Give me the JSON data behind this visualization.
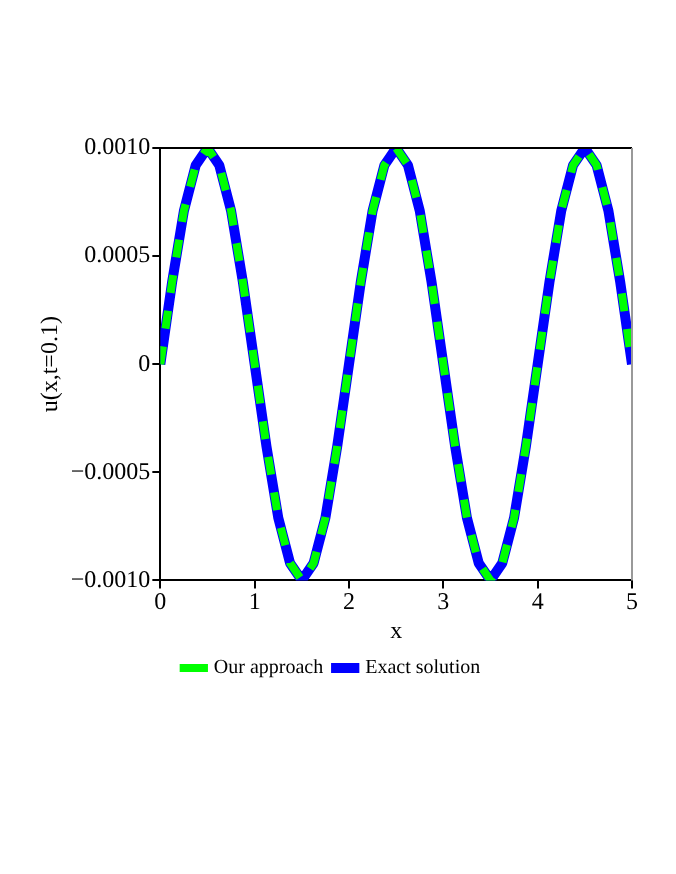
{
  "chart_data": {
    "type": "line",
    "xlabel": "x",
    "ylabel": "u(x,t=0.1)",
    "x": [
      0,
      0.125,
      0.25,
      0.375,
      0.5,
      0.625,
      0.75,
      0.875,
      1,
      1.125,
      1.25,
      1.375,
      1.5,
      1.625,
      1.75,
      1.875,
      2,
      2.125,
      2.25,
      2.375,
      2.5,
      2.625,
      2.75,
      2.875,
      3,
      3.125,
      3.25,
      3.375,
      3.5,
      3.625,
      3.75,
      3.875,
      4,
      4.125,
      4.25,
      4.375,
      4.5,
      4.625,
      4.75,
      4.875,
      5
    ],
    "series": [
      {
        "name": "Our approach",
        "color": "#00ff00",
        "line_style": "dashed",
        "values": [
          0,
          0.00038,
          0.00071,
          0.00092,
          0.001,
          0.00092,
          0.00071,
          0.00038,
          0,
          -0.00038,
          -0.00071,
          -0.00092,
          -0.001,
          -0.00092,
          -0.00071,
          -0.00038,
          0,
          0.00038,
          0.00071,
          0.00092,
          0.001,
          0.00092,
          0.00071,
          0.00038,
          0,
          -0.00038,
          -0.00071,
          -0.00092,
          -0.001,
          -0.00092,
          -0.00071,
          -0.00038,
          0,
          0.00038,
          0.00071,
          0.00092,
          0.001,
          0.00092,
          0.00071,
          0.00038,
          0
        ]
      },
      {
        "name": "Exact solution",
        "color": "#0000ff",
        "line_style": "solid",
        "values": [
          0,
          0.00038,
          0.00071,
          0.00092,
          0.001,
          0.00092,
          0.00071,
          0.00038,
          0,
          -0.00038,
          -0.00071,
          -0.00092,
          -0.001,
          -0.00092,
          -0.00071,
          -0.00038,
          0,
          0.00038,
          0.00071,
          0.00092,
          0.001,
          0.00092,
          0.00071,
          0.00038,
          0,
          -0.00038,
          -0.00071,
          -0.00092,
          -0.001,
          -0.00092,
          -0.00071,
          -0.00038,
          0,
          0.00038,
          0.00071,
          0.00092,
          0.001,
          0.00092,
          0.00071,
          0.00038,
          0
        ]
      }
    ],
    "xlim": [
      0,
      5
    ],
    "xticks": [
      0,
      1,
      2,
      3,
      4,
      5
    ],
    "ylim": [
      -0.001,
      0.001
    ],
    "yticks": [
      {
        "value": -0.001,
        "label": "−0.0010"
      },
      {
        "value": -0.0005,
        "label": "−0.0005"
      },
      {
        "value": 0,
        "label": "0"
      },
      {
        "value": 0.0005,
        "label": "0.0005"
      },
      {
        "value": 0.001,
        "label": "0.0010"
      }
    ],
    "legend": "bottom",
    "marker": "none"
  }
}
